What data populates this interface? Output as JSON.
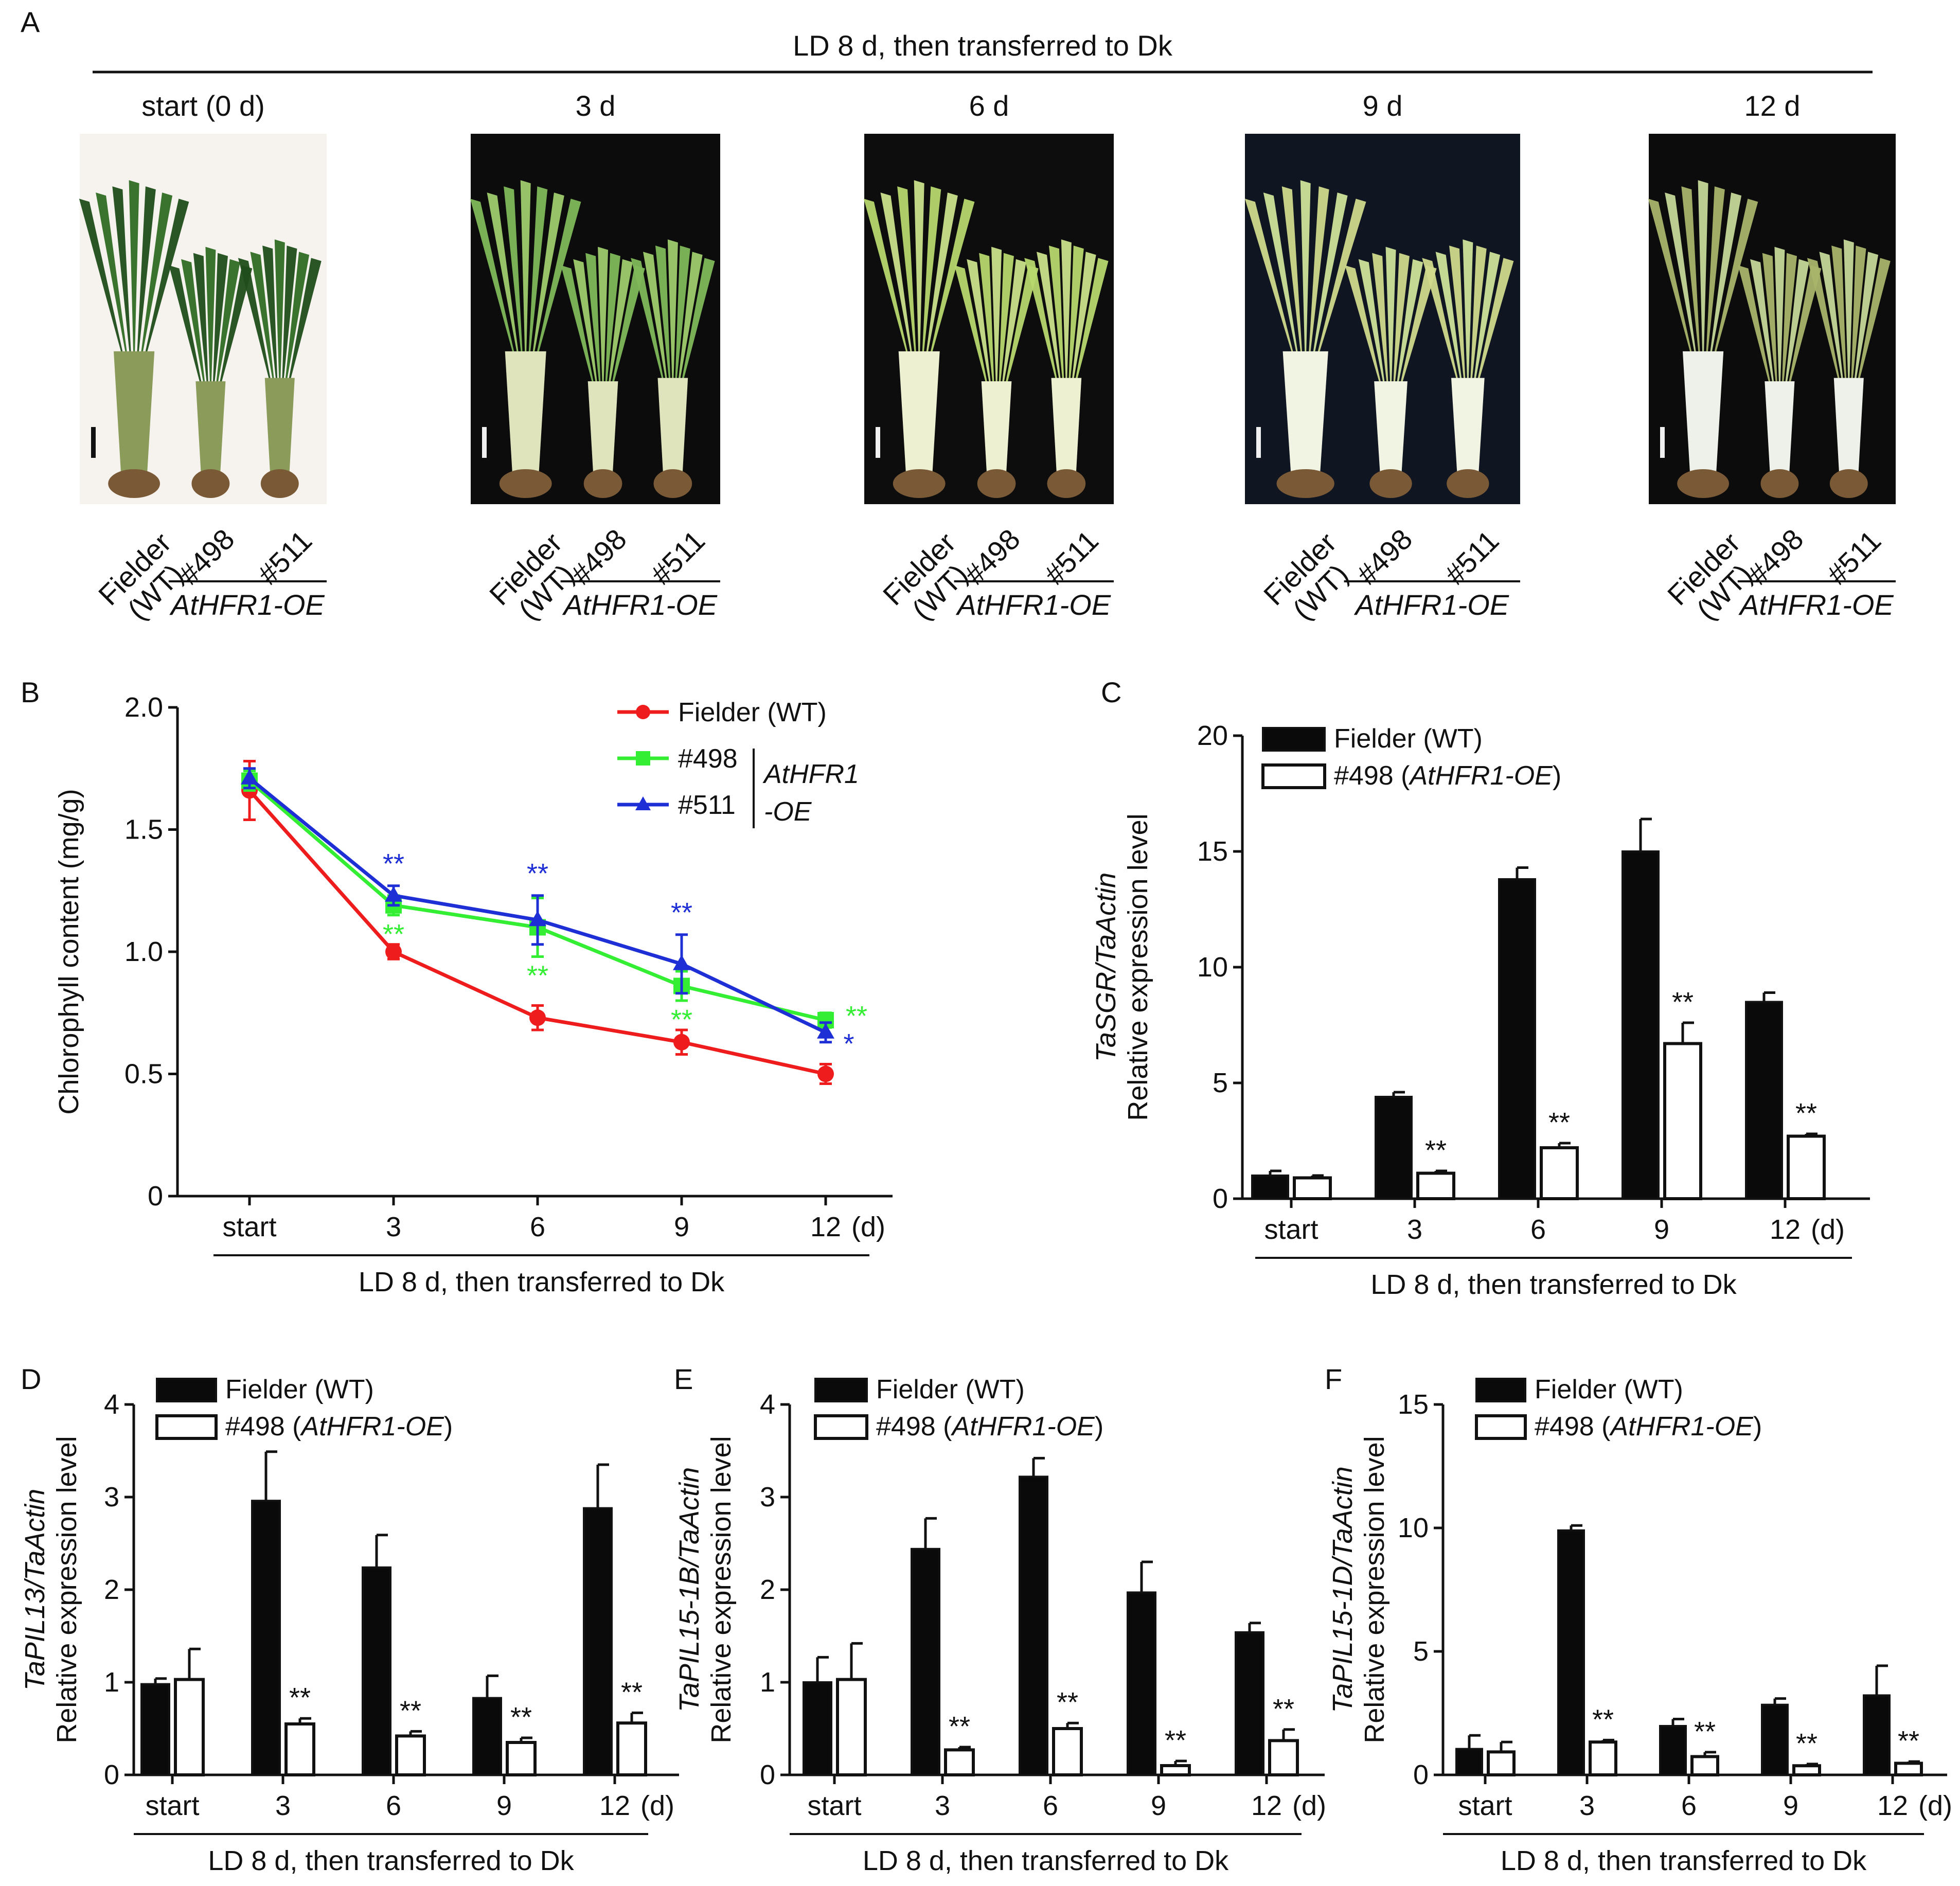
{
  "panel_a": {
    "letter": "A",
    "header": "LD 8 d, then transferred to Dk",
    "photos": [
      {
        "title": "start (0 d)",
        "bg": "#f6f2ee",
        "tip": "#1f4d1a",
        "leaf": "#2f6b22",
        "stem": "#8a9b5a"
      },
      {
        "title": "3 d",
        "bg": "#0c0c0c",
        "tip": "#7fb85a",
        "leaf": "#9fcc6e",
        "stem": "#dfe4bc"
      },
      {
        "title": "6 d",
        "bg": "#0d0d0d",
        "tip": "#b7d86e",
        "leaf": "#cbe28c",
        "stem": "#eef0d2"
      },
      {
        "title": "9 d",
        "bg": "#101522",
        "tip": "#d1d98c",
        "leaf": "#cfe39a",
        "stem": "#f1f3e3"
      },
      {
        "title": "12 d",
        "bg": "#0c0c0c",
        "tip": "#a9b46a",
        "leaf": "#c6d899",
        "stem": "#eef1ea"
      }
    ],
    "labels": {
      "wt_top": "Fielder",
      "wt_bot": "(WT)",
      "l498": "#498",
      "l511": "#511",
      "group": "AtHFR1-OE"
    }
  },
  "colors": {
    "wt": "#ee1c1c",
    "l498": "#33ee33",
    "l511": "#1f2fd6",
    "bar_wt": "#0a0a0a",
    "bar_oe": "#ffffff"
  },
  "common": {
    "categories": [
      "start",
      "3",
      "6",
      "9",
      "12"
    ],
    "unit": "(d)",
    "xlabel": "LD 8 d, then transferred to Dk",
    "ylabel": "Relative expression level",
    "legend_wt": "Fielder (WT)",
    "legend_oe_prefix": "#498 (",
    "legend_oe_italic": "AtHFR1-OE",
    "legend_oe_suffix": ")"
  },
  "chart_data": [
    {
      "panel": "B",
      "type": "line",
      "ylabel": "Chlorophyll content (mg/g)",
      "yticks": [
        "0",
        "0.5",
        "1.0",
        "1.5",
        "2.0"
      ],
      "ylim": [
        0,
        2.0
      ],
      "categories": [
        "start",
        "3",
        "6",
        "9",
        "12"
      ],
      "legend_group": [
        "AtHFR1",
        "-OE"
      ],
      "series": [
        {
          "name": "Fielder (WT)",
          "values": [
            1.66,
            1.0,
            0.73,
            0.63,
            0.5
          ],
          "errors": [
            0.12,
            0.03,
            0.05,
            0.05,
            0.04
          ],
          "stars": [
            "",
            "",
            "",
            "",
            ""
          ]
        },
        {
          "name": "#498",
          "values": [
            1.7,
            1.19,
            1.1,
            0.86,
            0.72
          ],
          "errors": [
            0.04,
            0.04,
            0.12,
            0.06,
            0.03
          ],
          "stars": [
            "",
            "**",
            "**",
            "**",
            "**"
          ]
        },
        {
          "name": "#511",
          "values": [
            1.71,
            1.23,
            1.13,
            0.95,
            0.67
          ],
          "errors": [
            0.04,
            0.04,
            0.1,
            0.12,
            0.04
          ],
          "stars": [
            "",
            "**",
            "**",
            "**",
            "*"
          ]
        }
      ]
    },
    {
      "panel": "C",
      "type": "bar",
      "ylabel_italic": "TaSGR/TaActin",
      "yticks": [
        "0",
        "5",
        "10",
        "15",
        "20"
      ],
      "ylim": [
        0,
        20
      ],
      "categories": [
        "start",
        "3",
        "6",
        "9",
        "12"
      ],
      "series": [
        {
          "name": "Fielder (WT)",
          "values": [
            1.0,
            4.4,
            13.8,
            15.0,
            8.5
          ],
          "errors": [
            0.2,
            0.2,
            0.5,
            1.4,
            0.4
          ]
        },
        {
          "name": "#498 (AtHFR1-OE)",
          "values": [
            0.9,
            1.1,
            2.2,
            6.7,
            2.7
          ],
          "errors": [
            0.1,
            0.1,
            0.2,
            0.9,
            0.1
          ]
        }
      ],
      "stars": [
        "",
        "**",
        "**",
        "**",
        "**"
      ]
    },
    {
      "panel": "D",
      "type": "bar",
      "ylabel_italic": "TaPIL13/TaActin",
      "yticks": [
        "0",
        "1",
        "2",
        "3",
        "4"
      ],
      "ylim": [
        0,
        4
      ],
      "categories": [
        "start",
        "3",
        "6",
        "9",
        "12"
      ],
      "series": [
        {
          "name": "Fielder (WT)",
          "values": [
            0.98,
            2.96,
            2.24,
            0.83,
            2.88
          ],
          "errors": [
            0.06,
            0.53,
            0.35,
            0.24,
            0.47
          ]
        },
        {
          "name": "#498 (AtHFR1-OE)",
          "values": [
            1.03,
            0.55,
            0.42,
            0.35,
            0.56
          ],
          "errors": [
            0.33,
            0.06,
            0.05,
            0.05,
            0.11
          ]
        }
      ],
      "stars": [
        "",
        "**",
        "**",
        "**",
        "**"
      ]
    },
    {
      "panel": "E",
      "type": "bar",
      "ylabel_italic": "TaPIL15-1B/TaActin",
      "yticks": [
        "0",
        "1",
        "2",
        "3",
        "4"
      ],
      "ylim": [
        0,
        4
      ],
      "categories": [
        "start",
        "3",
        "6",
        "9",
        "12"
      ],
      "series": [
        {
          "name": "Fielder (WT)",
          "values": [
            1.0,
            2.44,
            3.22,
            1.97,
            1.54
          ],
          "errors": [
            0.27,
            0.33,
            0.2,
            0.33,
            0.1
          ]
        },
        {
          "name": "#498 (AtHFR1-OE)",
          "values": [
            1.03,
            0.27,
            0.5,
            0.1,
            0.37
          ],
          "errors": [
            0.39,
            0.03,
            0.06,
            0.05,
            0.12
          ]
        }
      ],
      "stars": [
        "",
        "**",
        "**",
        "**",
        "**"
      ]
    },
    {
      "panel": "F",
      "type": "bar",
      "ylabel_italic": "TaPIL15-1D/TaActin",
      "yticks": [
        "0",
        "5",
        "10",
        "15"
      ],
      "ylim": [
        0,
        15
      ],
      "categories": [
        "start",
        "3",
        "6",
        "9",
        "12"
      ],
      "series": [
        {
          "name": "Fielder (WT)",
          "values": [
            1.05,
            9.9,
            1.98,
            2.84,
            3.22
          ],
          "errors": [
            0.55,
            0.2,
            0.28,
            0.25,
            1.2
          ]
        },
        {
          "name": "#498 (AtHFR1-OE)",
          "values": [
            0.93,
            1.33,
            0.74,
            0.37,
            0.47
          ],
          "errors": [
            0.4,
            0.08,
            0.18,
            0.07,
            0.07
          ]
        }
      ],
      "stars": [
        "",
        "**",
        "**",
        "**",
        "**"
      ]
    }
  ]
}
